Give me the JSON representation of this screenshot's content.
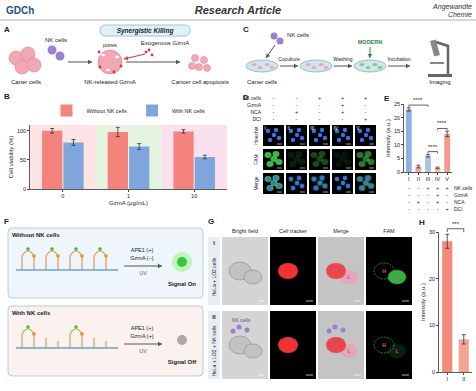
{
  "header": {
    "left": "GDCh",
    "center": "Research Article",
    "right_top": "Angewandte",
    "right_bottom": "Chemie"
  },
  "panels": {
    "A": {
      "label": "A",
      "title": "Synergistic Killing",
      "cancer": "Caner cells",
      "nk": "NK cells",
      "pores": "pores",
      "released": "NK-released GzmA",
      "exogenous": "Exogenous GzmA",
      "apoptosis": "Cancer cell apoptosis"
    },
    "C": {
      "label": "C",
      "nk": "NK cells",
      "cancer": "Caner cells",
      "probe": "MODERN",
      "steps": [
        "Coculture",
        "Washing",
        "Incubation",
        "Imaging"
      ]
    },
    "D": {
      "label": "D",
      "conditions": {
        "rows": [
          "NK cells",
          "GzmA",
          "NCA",
          "DCI"
        ],
        "columns": [
          "I",
          "II",
          "III",
          "IV",
          "V"
        ],
        "signs": [
          [
            "-",
            "-",
            "+",
            "+",
            "+"
          ],
          [
            "-",
            "-",
            "-",
            "+",
            "-"
          ],
          [
            "-",
            "+",
            "-",
            "+",
            "-"
          ],
          [
            "-",
            "-",
            "-",
            "-",
            "+"
          ]
        ]
      },
      "channels": [
        "Hoechst",
        "FAM",
        "Merge"
      ]
    },
    "E": {
      "conditions": {
        "rows": [
          "NK cells",
          "GzmA",
          "NCA",
          "DCI"
        ],
        "signs": [
          [
            "-",
            "-",
            "+",
            "+",
            "+"
          ],
          [
            "-",
            "-",
            "-",
            "+",
            "-"
          ],
          [
            "-",
            "+",
            "-",
            "+",
            "-"
          ],
          [
            "-",
            "-",
            "-",
            "-",
            "+"
          ]
        ]
      }
    },
    "F": {
      "label": "F",
      "boxes": [
        {
          "title": "Without NK cells",
          "ape1": "APE1 (+)",
          "gzma": "GzmA (−)",
          "uv": "UV",
          "signal": "Signal On"
        },
        {
          "title": "With NK cells",
          "ape1": "APE1 (+)",
          "gzma": "GzmA (+)",
          "uv": "UV",
          "signal": "Signal Off"
        }
      ]
    },
    "G": {
      "label": "G",
      "columns": [
        "Bright field",
        "Cell tracker",
        "Merge",
        "FAM"
      ],
      "rows": [
        {
          "id": "I",
          "sample": "HeLa + LO2 cells"
        },
        {
          "id": "II",
          "sample": "HeLa + LO2 + NK cells"
        }
      ],
      "markers": {
        "hela": "H",
        "lo2": "L",
        "nk": "NK cells"
      }
    }
  },
  "chart_data": [
    {
      "panel": "B",
      "type": "bar",
      "xlabel": "GzmA (μg/mL)",
      "ylabel": "Cell viability (%)",
      "categories": [
        "0",
        "1",
        "10"
      ],
      "series": [
        {
          "name": "Without NK cells",
          "color": "#f4837d",
          "values": [
            100,
            98,
            99
          ],
          "errors": [
            4,
            8,
            3
          ]
        },
        {
          "name": "With NK cells",
          "color": "#7fa6dc",
          "values": [
            80,
            73,
            55
          ],
          "errors": [
            5,
            5,
            3
          ]
        }
      ],
      "ylim": [
        0,
        110
      ],
      "yticks": [
        0,
        50,
        100
      ],
      "legend": "top"
    },
    {
      "panel": "E",
      "type": "bar",
      "ylabel": "Intensity (a.u.)",
      "categories": [
        "I",
        "II",
        "III",
        "IV",
        "V"
      ],
      "values": [
        23,
        2,
        6,
        1.5,
        14
      ],
      "errors": [
        0.6,
        0.5,
        0.5,
        0.3,
        1
      ],
      "colors": [
        "#8fb2e6",
        "#f4a6a6",
        "#a9c4ec",
        "#f6c88c",
        "#f39a8f"
      ],
      "ylim": [
        0,
        25
      ],
      "yticks": [
        0,
        5,
        10,
        15,
        20,
        25
      ],
      "significance": [
        {
          "between": [
            "I",
            "III"
          ],
          "label": "****"
        },
        {
          "between": [
            "III",
            "IV"
          ],
          "label": "****"
        },
        {
          "between": [
            "IV",
            "V"
          ],
          "label": "****"
        }
      ]
    },
    {
      "panel": "H",
      "type": "bar",
      "ylabel": "Intensity (a.u.)",
      "categories": [
        "I",
        "II"
      ],
      "values": [
        28,
        7
      ],
      "errors": [
        1.5,
        1
      ],
      "colors": [
        "#f38b7c",
        "#f5a394"
      ],
      "ylim": [
        0,
        30
      ],
      "yticks": [
        0,
        10,
        20,
        30
      ],
      "significance": [
        {
          "between": [
            "I",
            "II"
          ],
          "label": "***"
        }
      ]
    }
  ]
}
